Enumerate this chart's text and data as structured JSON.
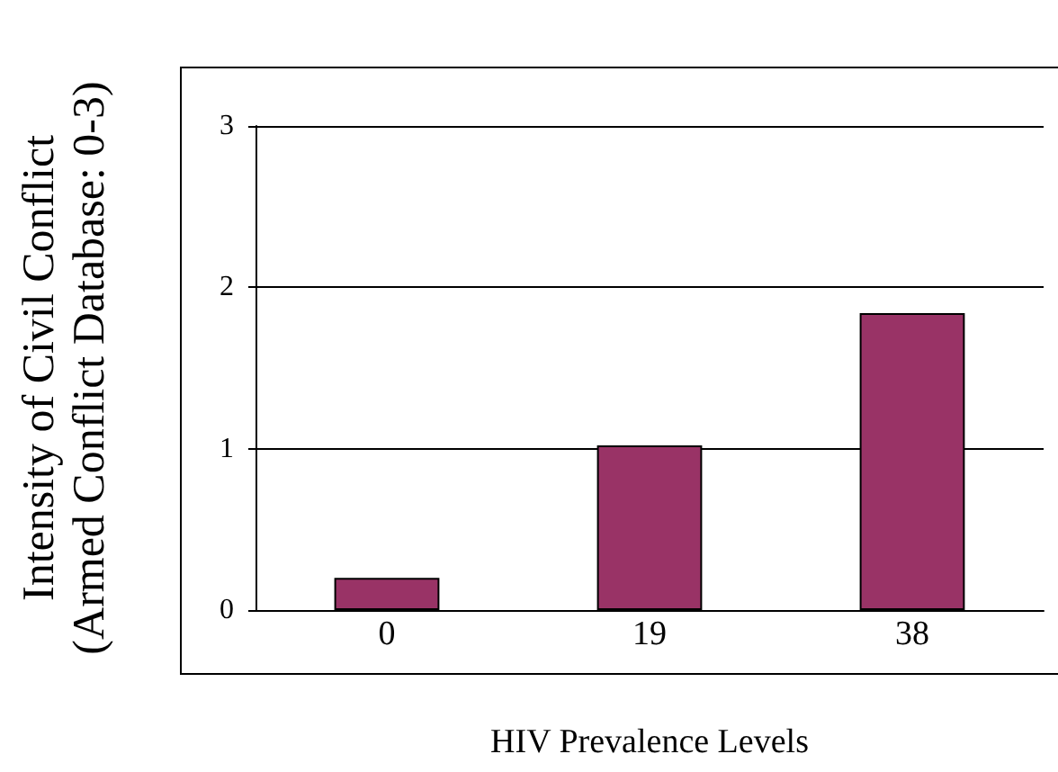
{
  "chart_data": {
    "type": "bar",
    "xlabel": "HIV Prevalence Levels",
    "ylabel": "Intensity of Civil Conflict\n(Armed Conflict Database: 0-3)",
    "categories": [
      "0",
      "19",
      "38"
    ],
    "values": [
      0.2,
      1.02,
      1.84
    ],
    "color": "#993366",
    "ylim": [
      0,
      3
    ],
    "yticks": [
      0,
      1,
      2,
      3
    ],
    "grid": "y"
  }
}
